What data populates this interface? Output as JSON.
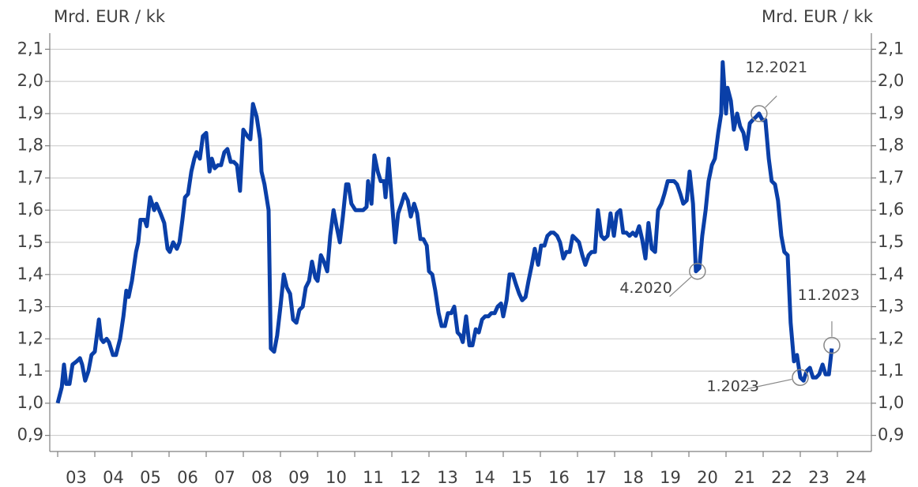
{
  "chart_data": {
    "type": "line",
    "y_label": "Mrd. EUR / kk",
    "y2_label": "Mrd. EUR / kk",
    "xlim": [
      2003,
      2024.9
    ],
    "ylim": [
      0.85,
      2.15
    ],
    "y2lim": [
      0.85,
      2.15
    ],
    "xticks": [
      {
        "value": 2003,
        "label": "03"
      },
      {
        "value": 2004,
        "label": "04"
      },
      {
        "value": 2005,
        "label": "05"
      },
      {
        "value": 2006,
        "label": "06"
      },
      {
        "value": 2007,
        "label": "07"
      },
      {
        "value": 2008,
        "label": "08"
      },
      {
        "value": 2009,
        "label": "09"
      },
      {
        "value": 2010,
        "label": "10"
      },
      {
        "value": 2011,
        "label": "11"
      },
      {
        "value": 2012,
        "label": "12"
      },
      {
        "value": 2013,
        "label": "13"
      },
      {
        "value": 2014,
        "label": "14"
      },
      {
        "value": 2015,
        "label": "15"
      },
      {
        "value": 2016,
        "label": "16"
      },
      {
        "value": 2017,
        "label": "17"
      },
      {
        "value": 2018,
        "label": "18"
      },
      {
        "value": 2019,
        "label": "19"
      },
      {
        "value": 2020,
        "label": "20"
      },
      {
        "value": 2021,
        "label": "21"
      },
      {
        "value": 2022,
        "label": "22"
      },
      {
        "value": 2023,
        "label": "23"
      },
      {
        "value": 2024,
        "label": "24"
      }
    ],
    "yticks": [
      {
        "value": 0.9,
        "label": "0,9"
      },
      {
        "value": 1.0,
        "label": "1,0"
      },
      {
        "value": 1.1,
        "label": "1,1"
      },
      {
        "value": 1.2,
        "label": "1,2"
      },
      {
        "value": 1.3,
        "label": "1,3"
      },
      {
        "value": 1.4,
        "label": "1,4"
      },
      {
        "value": 1.5,
        "label": "1,5"
      },
      {
        "value": 1.6,
        "label": "1,6"
      },
      {
        "value": 1.7,
        "label": "1,7"
      },
      {
        "value": 1.8,
        "label": "1,8"
      },
      {
        "value": 1.9,
        "label": "1,9"
      },
      {
        "value": 2.0,
        "label": "2,0"
      },
      {
        "value": 2.1,
        "label": "2,1"
      }
    ],
    "y2ticks": [
      {
        "value": 0.9,
        "label": "0,9"
      },
      {
        "value": 1.0,
        "label": "1,0"
      },
      {
        "value": 1.1,
        "label": "1,1"
      },
      {
        "value": 1.2,
        "label": "1,2"
      },
      {
        "value": 1.3,
        "label": "1,3"
      },
      {
        "value": 1.4,
        "label": "1,4"
      },
      {
        "value": 1.5,
        "label": "1,5"
      },
      {
        "value": 1.6,
        "label": "1,6"
      },
      {
        "value": 1.7,
        "label": "1,7"
      },
      {
        "value": 1.8,
        "label": "1,8"
      },
      {
        "value": 1.9,
        "label": "1,9"
      },
      {
        "value": 2.0,
        "label": "2,0"
      },
      {
        "value": 2.1,
        "label": "2,1"
      }
    ],
    "grid": true,
    "color": "#0a3fa8",
    "x": [
      2003.0,
      2003.11,
      2003.17,
      2003.23,
      2003.32,
      2003.4,
      2003.51,
      2003.6,
      2003.66,
      2003.74,
      2003.83,
      2003.91,
      2004.0,
      2004.11,
      2004.17,
      2004.23,
      2004.32,
      2004.38,
      2004.49,
      2004.57,
      2004.68,
      2004.77,
      2004.85,
      2004.91,
      2005.0,
      2005.11,
      2005.17,
      2005.23,
      2005.34,
      2005.4,
      2005.49,
      2005.6,
      2005.66,
      2005.77,
      2005.87,
      2005.96,
      2006.02,
      2006.11,
      2006.21,
      2006.28,
      2006.36,
      2006.43,
      2006.51,
      2006.6,
      2006.68,
      2006.74,
      2006.83,
      2006.91,
      2007.0,
      2007.09,
      2007.15,
      2007.23,
      2007.32,
      2007.4,
      2007.49,
      2007.57,
      2007.66,
      2007.74,
      2007.83,
      2007.91,
      2008.0,
      2008.11,
      2008.19,
      2008.26,
      2008.36,
      2008.45,
      2008.49,
      2008.57,
      2008.68,
      2008.74,
      2008.83,
      2008.91,
      2009.0,
      2009.09,
      2009.17,
      2009.26,
      2009.34,
      2009.43,
      2009.51,
      2009.6,
      2009.68,
      2009.77,
      2009.85,
      2009.94,
      2010.0,
      2010.09,
      2010.17,
      2010.26,
      2010.34,
      2010.43,
      2010.51,
      2010.6,
      2010.68,
      2010.77,
      2010.83,
      2010.91,
      2011.02,
      2011.13,
      2011.23,
      2011.32,
      2011.36,
      2011.45,
      2011.53,
      2011.62,
      2011.7,
      2011.79,
      2011.83,
      2011.91,
      2012.0,
      2012.09,
      2012.17,
      2012.26,
      2012.34,
      2012.43,
      2012.51,
      2012.6,
      2012.68,
      2012.77,
      2012.85,
      2012.94,
      2013.0,
      2013.09,
      2013.17,
      2013.26,
      2013.34,
      2013.43,
      2013.51,
      2013.6,
      2013.68,
      2013.77,
      2013.85,
      2013.91,
      2014.0,
      2014.09,
      2014.17,
      2014.26,
      2014.34,
      2014.43,
      2014.51,
      2014.6,
      2014.68,
      2014.77,
      2014.85,
      2014.94,
      2015.0,
      2015.09,
      2015.17,
      2015.26,
      2015.34,
      2015.43,
      2015.51,
      2015.6,
      2015.68,
      2015.77,
      2015.85,
      2015.94,
      2016.02,
      2016.11,
      2016.19,
      2016.28,
      2016.36,
      2016.45,
      2016.53,
      2016.62,
      2016.7,
      2016.79,
      2016.87,
      2016.96,
      2017.04,
      2017.13,
      2017.21,
      2017.3,
      2017.38,
      2017.47,
      2017.55,
      2017.64,
      2017.72,
      2017.81,
      2017.89,
      2017.98,
      2018.06,
      2018.15,
      2018.23,
      2018.32,
      2018.4,
      2018.49,
      2018.57,
      2018.66,
      2018.74,
      2018.83,
      2018.91,
      2019.0,
      2019.09,
      2019.17,
      2019.26,
      2019.34,
      2019.43,
      2019.51,
      2019.6,
      2019.68,
      2019.77,
      2019.85,
      2019.94,
      2020.02,
      2020.11,
      2020.19,
      2020.28,
      2020.36,
      2020.45,
      2020.53,
      2020.62,
      2020.7,
      2020.79,
      2020.87,
      2020.91,
      2021.0,
      2021.04,
      2021.13,
      2021.21,
      2021.3,
      2021.38,
      2021.47,
      2021.55,
      2021.64,
      2021.72,
      2021.81,
      2021.89,
      2021.98,
      2022.06,
      2022.15,
      2022.23,
      2022.32,
      2022.4,
      2022.49,
      2022.57,
      2022.66,
      2022.74,
      2022.83,
      2022.91,
      2023.0,
      2023.09,
      2023.17,
      2023.26,
      2023.34,
      2023.43,
      2023.51,
      2023.6,
      2023.68,
      2023.77,
      2023.85
    ],
    "values": [
      1.0,
      1.05,
      1.12,
      1.06,
      1.06,
      1.12,
      1.13,
      1.14,
      1.12,
      1.07,
      1.1,
      1.15,
      1.16,
      1.26,
      1.2,
      1.19,
      1.2,
      1.19,
      1.15,
      1.15,
      1.2,
      1.27,
      1.35,
      1.33,
      1.38,
      1.47,
      1.5,
      1.57,
      1.57,
      1.55,
      1.64,
      1.6,
      1.62,
      1.59,
      1.56,
      1.48,
      1.47,
      1.5,
      1.48,
      1.5,
      1.57,
      1.64,
      1.65,
      1.72,
      1.76,
      1.78,
      1.76,
      1.83,
      1.84,
      1.72,
      1.76,
      1.73,
      1.74,
      1.74,
      1.78,
      1.79,
      1.75,
      1.75,
      1.74,
      1.66,
      1.85,
      1.83,
      1.82,
      1.93,
      1.89,
      1.82,
      1.72,
      1.68,
      1.6,
      1.17,
      1.16,
      1.21,
      1.3,
      1.4,
      1.36,
      1.34,
      1.26,
      1.25,
      1.29,
      1.3,
      1.36,
      1.38,
      1.44,
      1.39,
      1.38,
      1.46,
      1.44,
      1.41,
      1.52,
      1.6,
      1.55,
      1.5,
      1.58,
      1.68,
      1.68,
      1.62,
      1.6,
      1.6,
      1.6,
      1.61,
      1.69,
      1.62,
      1.77,
      1.72,
      1.69,
      1.69,
      1.64,
      1.76,
      1.63,
      1.5,
      1.59,
      1.62,
      1.65,
      1.63,
      1.58,
      1.62,
      1.59,
      1.51,
      1.51,
      1.49,
      1.41,
      1.4,
      1.35,
      1.28,
      1.24,
      1.24,
      1.28,
      1.28,
      1.3,
      1.22,
      1.21,
      1.19,
      1.27,
      1.18,
      1.18,
      1.23,
      1.22,
      1.26,
      1.27,
      1.27,
      1.28,
      1.28,
      1.3,
      1.31,
      1.27,
      1.32,
      1.4,
      1.4,
      1.37,
      1.34,
      1.32,
      1.33,
      1.38,
      1.43,
      1.48,
      1.43,
      1.49,
      1.49,
      1.52,
      1.53,
      1.53,
      1.52,
      1.5,
      1.45,
      1.47,
      1.47,
      1.52,
      1.51,
      1.5,
      1.46,
      1.43,
      1.46,
      1.47,
      1.47,
      1.6,
      1.52,
      1.51,
      1.52,
      1.59,
      1.52,
      1.59,
      1.6,
      1.53,
      1.53,
      1.52,
      1.53,
      1.52,
      1.55,
      1.51,
      1.45,
      1.56,
      1.48,
      1.47,
      1.6,
      1.62,
      1.65,
      1.69,
      1.69,
      1.69,
      1.68,
      1.65,
      1.62,
      1.63,
      1.72,
      1.62,
      1.41,
      1.42,
      1.52,
      1.6,
      1.69,
      1.74,
      1.76,
      1.84,
      1.9,
      2.06,
      1.9,
      1.98,
      1.94,
      1.85,
      1.9,
      1.86,
      1.84,
      1.79,
      1.87,
      1.88,
      1.89,
      1.9,
      1.88,
      1.88,
      1.76,
      1.69,
      1.68,
      1.63,
      1.52,
      1.47,
      1.46,
      1.25,
      1.13,
      1.15,
      1.08,
      1.07,
      1.1,
      1.11,
      1.08,
      1.08,
      1.09,
      1.12,
      1.09,
      1.09,
      1.17
    ],
    "annotations": [
      {
        "text": "12.2021",
        "x": 2021.89,
        "y": 1.9
      },
      {
        "text": "4.2020",
        "x": 2020.23,
        "y": 1.41
      },
      {
        "text": "1.2023",
        "x": 2023.0,
        "y": 1.08
      },
      {
        "text": "11.2023",
        "x": 2023.85,
        "y": 1.18
      }
    ]
  }
}
